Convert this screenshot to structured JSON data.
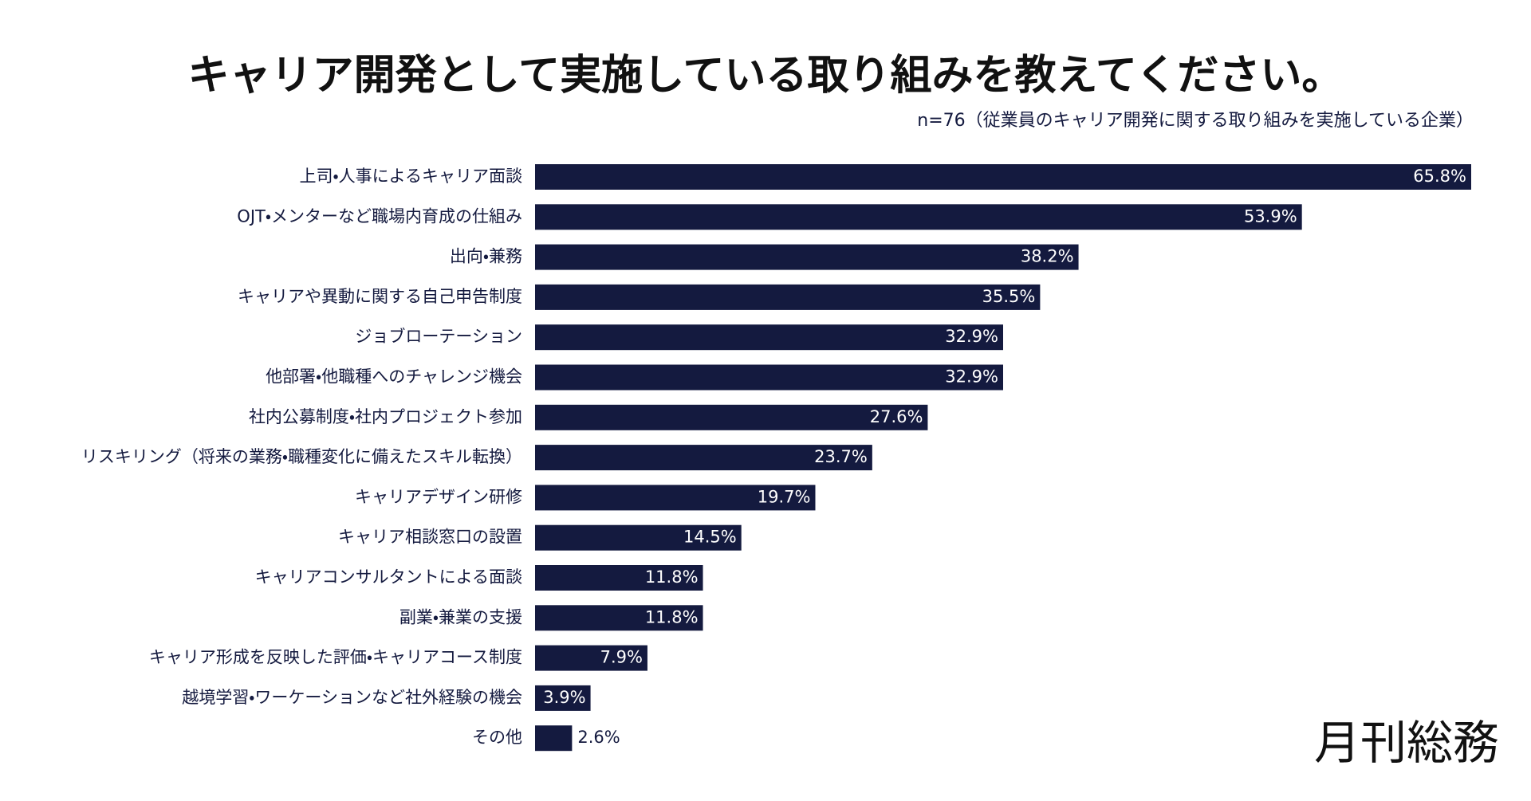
{
  "chart_data": {
    "type": "bar",
    "orientation": "horizontal",
    "title": "キャリア開発として実施している取り組みを教えてください。",
    "subtitle": "n=76（従業員のキャリア開発に関する取り組みを実施している企業）",
    "brand": "月刊総務",
    "color": "#141a3f",
    "categories": [
      "上司・人事によるキャリア面談",
      "OJT・メンターなど職場内育成の仕組み",
      "出向・兼務",
      "キャリアや異動に関する自己申告制度",
      "ジョブローテーション",
      "他部署・他職種へのチャレンジ機会",
      "社内公募制度・社内プロジェクト参加",
      "リスキリング（将来の業務・職種変化に備えたスキル転換）",
      "キャリアデザイン研修",
      "キャリア相談窓口の設置",
      "キャリアコンサルタントによる面談",
      "副業・兼業の支援",
      "キャリア形成を反映した評価・キャリアコース制度",
      "越境学習・ワーケーションなど社外経験の機会",
      "その他"
    ],
    "values": [
      65.8,
      53.9,
      38.2,
      35.5,
      32.9,
      32.9,
      27.6,
      23.7,
      19.7,
      14.5,
      11.8,
      11.8,
      7.9,
      3.9,
      2.6
    ],
    "value_labels": [
      "65.8%",
      "53.9%",
      "38.2%",
      "35.5%",
      "32.9%",
      "32.9%",
      "27.6%",
      "23.7%",
      "19.7%",
      "14.5%",
      "11.8%",
      "11.8%",
      "7.9%",
      "3.9%",
      "2.6%"
    ]
  }
}
